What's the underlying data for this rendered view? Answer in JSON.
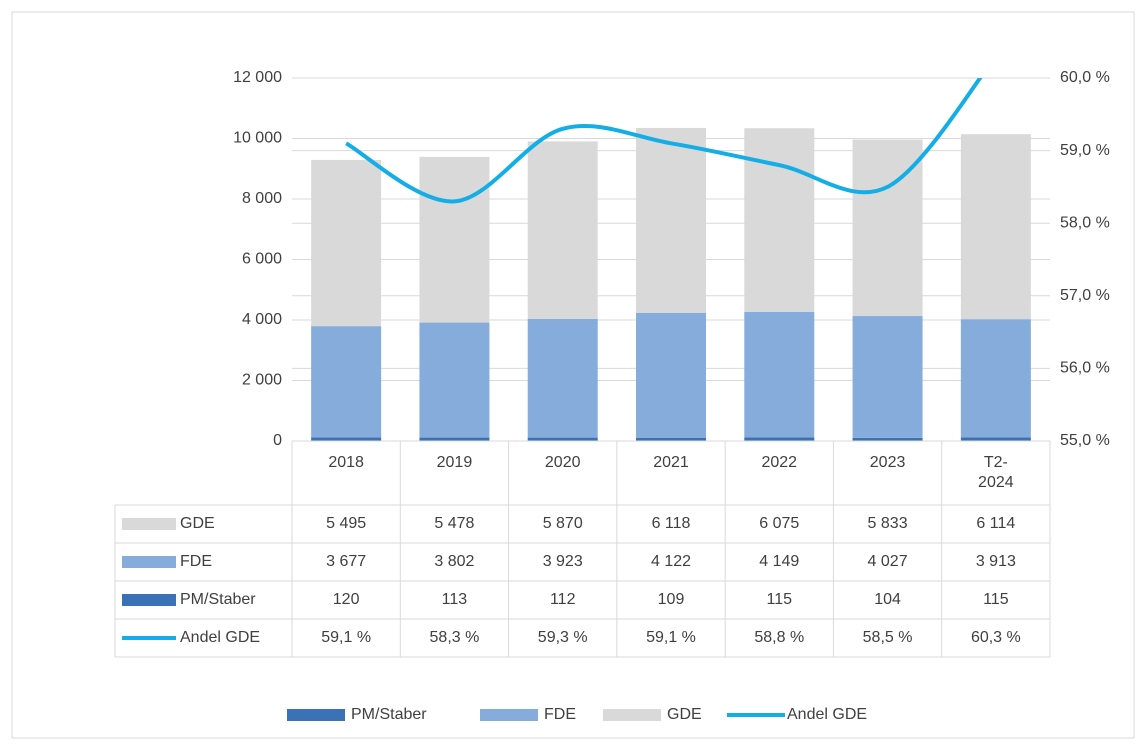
{
  "chart_data": {
    "type": "bar",
    "stacked": true,
    "categories": [
      "2018",
      "2019",
      "2020",
      "2021",
      "2022",
      "2023",
      "T2-2024"
    ],
    "series": [
      {
        "name": "PM/Staber",
        "color": "#3a72b5",
        "values": [
          120,
          113,
          112,
          109,
          115,
          104,
          115
        ]
      },
      {
        "name": "FDE",
        "color": "#86acdc",
        "values": [
          3677,
          3802,
          3923,
          4122,
          4149,
          4027,
          3913
        ],
        "value_labels": [
          "3 677",
          "3 802",
          "3 923",
          "4 122",
          "4 149",
          "4 027",
          "3 913"
        ]
      },
      {
        "name": "GDE",
        "color": "#d9d9d9",
        "values": [
          5495,
          5478,
          5870,
          6118,
          6075,
          5833,
          6114
        ],
        "value_labels": [
          "5 495",
          "5 478",
          "5 870",
          "6 118",
          "6 075",
          "5 833",
          "6 114"
        ]
      },
      {
        "name": "Andel GDE",
        "color": "#14aee6",
        "type": "line",
        "smooth": true,
        "axis": "y2",
        "values": [
          59.1,
          58.3,
          59.3,
          59.1,
          58.8,
          58.5,
          60.3
        ],
        "value_labels": [
          "59,1 %",
          "58,3 %",
          "59,3 %",
          "59,1 %",
          "58,8 %",
          "58,5 %",
          "60,3 %"
        ]
      }
    ],
    "ylim": [
      0,
      12000
    ],
    "yticks": [
      0,
      {
        "value": 2000,
        "label": "2 000"
      },
      {
        "value": 4000,
        "label": "4 000"
      },
      {
        "value": 6000,
        "label": "6 000"
      },
      {
        "value": 8000,
        "label": "8 000"
      },
      {
        "value": 10000,
        "label": "10 000"
      },
      {
        "value": 12000,
        "label": "12 000"
      }
    ],
    "y2lim": [
      55,
      60
    ],
    "y2ticks": [
      {
        "value": 55,
        "label": "55,0 %"
      },
      {
        "value": 56,
        "label": "56,0 %"
      },
      {
        "value": 57,
        "label": "57,0 %"
      },
      {
        "value": 58,
        "label": "58,0 %"
      },
      {
        "value": 59,
        "label": "59,0 %"
      },
      {
        "value": 60,
        "label": "60,0 %"
      }
    ],
    "grid": true,
    "data_table": true,
    "legend": "bottom"
  }
}
